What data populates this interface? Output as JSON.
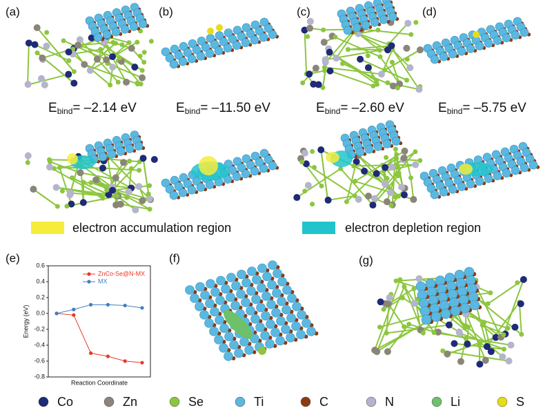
{
  "panels": {
    "a": {
      "label": "(a)",
      "energy": {
        "symbol": "E",
        "subscript": "bind",
        "text": "= –2.14 eV"
      }
    },
    "b": {
      "label": "(b)",
      "energy": {
        "symbol": "E",
        "subscript": "bind",
        "text": "= –11.50 eV"
      }
    },
    "c": {
      "label": "(c)",
      "energy": {
        "symbol": "E",
        "subscript": "bind",
        "text": "= –2.60 eV"
      }
    },
    "d": {
      "label": "(d)",
      "energy": {
        "symbol": "E",
        "subscript": "bind",
        "text": "= –5.75 eV"
      }
    },
    "e": {
      "label": "(e)"
    },
    "f": {
      "label": "(f)"
    },
    "g": {
      "label": "(g)"
    }
  },
  "charge_legend": [
    {
      "label": "electron accumulation region",
      "color": "#f5ec3c"
    },
    {
      "label": "electron depletion region",
      "color": "#22c4cc"
    }
  ],
  "atom_legend": [
    {
      "label": "Co",
      "color": "#1f2a78"
    },
    {
      "label": "Zn",
      "color": "#8a8578"
    },
    {
      "label": "Se",
      "color": "#8cc63f"
    },
    {
      "label": "Ti",
      "color": "#5bb8e0"
    },
    {
      "label": "C",
      "color": "#8b3a12"
    },
    {
      "label": "N",
      "color": "#b4b4cc"
    },
    {
      "label": "Li",
      "color": "#6cc16a"
    },
    {
      "label": "S",
      "color": "#e8dc18"
    }
  ],
  "chart_data": {
    "type": "line",
    "x_label": "Reaction Coordinate",
    "y_label": "Energy (eV)",
    "categories": [
      null,
      null,
      null,
      null,
      null,
      null
    ],
    "series": [
      {
        "name": "ZnCo-Se@N-MX",
        "color": "#e8392a",
        "values": [
          0,
          -0.02,
          -0.5,
          -0.54,
          -0.6,
          -0.62
        ]
      },
      {
        "name": "MX",
        "color": "#3f7fc0",
        "values": [
          0,
          0.05,
          0.11,
          0.11,
          0.1,
          0.07
        ]
      }
    ],
    "ylim": [
      -0.8,
      0.6
    ],
    "yticks": [
      -0.8,
      -0.6,
      -0.4,
      -0.2,
      {
        "value": 0,
        "label": "0.0"
      },
      0.2,
      0.4,
      0.6
    ]
  }
}
